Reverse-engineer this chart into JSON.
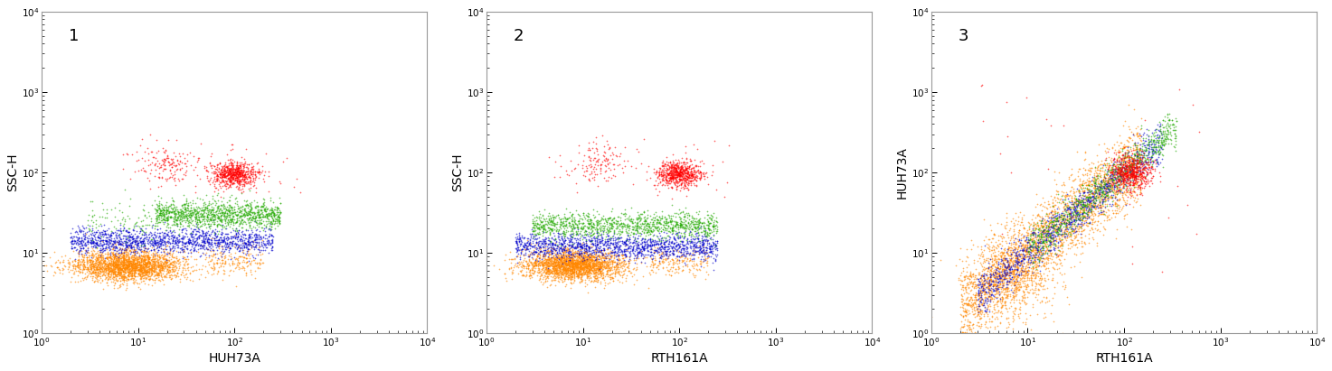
{
  "panels": [
    {
      "panel_num": "1",
      "xlabel": "HUH73A",
      "ylabel": "SSC-H"
    },
    {
      "panel_num": "2",
      "xlabel": "RTH161A",
      "ylabel": "SSC-H"
    },
    {
      "panel_num": "3",
      "xlabel": "RTH161A",
      "ylabel": "HUH73A"
    }
  ],
  "colors": {
    "red": "#FF0000",
    "green": "#22AA00",
    "blue": "#0000CC",
    "orange": "#FF8800"
  },
  "xlim": [
    1.0,
    10000.0
  ],
  "ylim": [
    1.0,
    10000.0
  ],
  "marker_size": 1.5,
  "bg_color": "#FFFFFF",
  "seed": 42,
  "figsize": [
    14.73,
    4.11
  ],
  "dpi": 100
}
